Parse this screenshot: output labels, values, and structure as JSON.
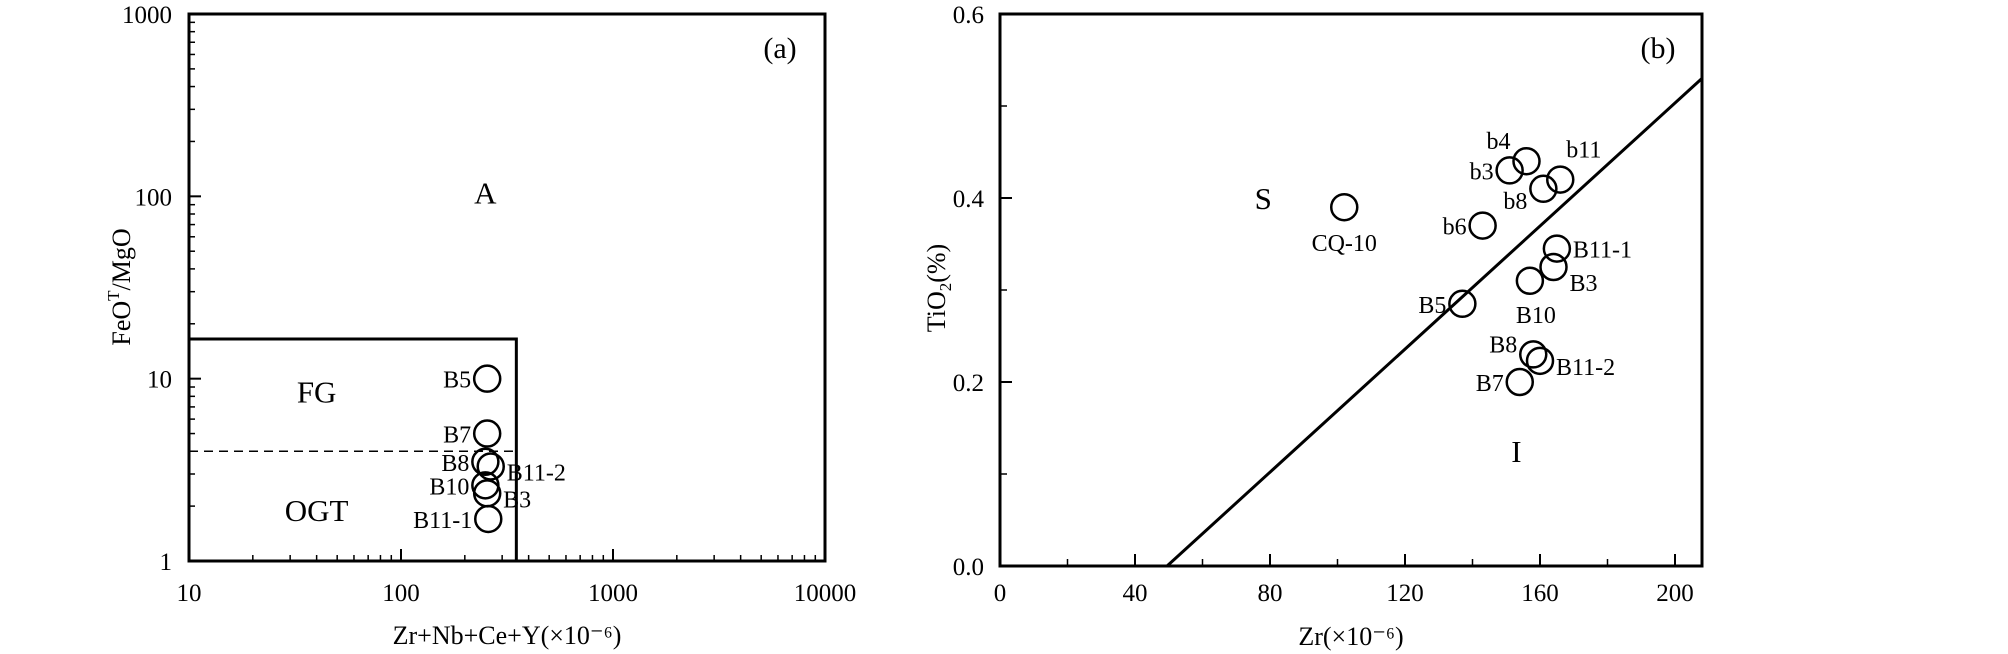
{
  "chart_data": [
    {
      "type": "scatter",
      "panel_label": "(a)",
      "xlabel": "Zr+Nb+Ce+Y(×10⁻⁶)",
      "ylabel_main": "FeO",
      "ylabel_sup": "T",
      "ylabel_rest": "/MgO",
      "x_scale": "log",
      "y_scale": "log",
      "xlim": [
        10,
        10000
      ],
      "ylim": [
        1,
        1000
      ],
      "x_ticks": [
        "10",
        "100",
        "1000",
        "10000"
      ],
      "y_ticks": [
        "1",
        "10",
        "100",
        "1000"
      ],
      "regions": [
        {
          "label": "A",
          "x": 250,
          "y": 105
        },
        {
          "label": "FG",
          "x": 40,
          "y": 8.5
        },
        {
          "label": "OGT",
          "x": 40,
          "y": 1.9
        }
      ],
      "boundaries": {
        "box": {
          "x": [
            10,
            350
          ],
          "y": [
            1,
            16.5
          ]
        },
        "dashed_y": 4
      },
      "points": [
        {
          "label": "B5",
          "x": 255,
          "y": 10.0
        },
        {
          "label": "B7",
          "x": 255,
          "y": 5.0
        },
        {
          "label": "B8",
          "x": 250,
          "y": 3.5
        },
        {
          "label": "B11-2",
          "x": 265,
          "y": 3.3
        },
        {
          "label": "B10",
          "x": 250,
          "y": 2.6
        },
        {
          "label": "B3",
          "x": 255,
          "y": 2.35
        },
        {
          "label": "B11-1",
          "x": 258,
          "y": 1.7
        }
      ]
    },
    {
      "type": "scatter",
      "panel_label": "(b)",
      "xlabel": "Zr(×10⁻⁶)",
      "ylabel_main": "TiO",
      "ylabel_sub": "2",
      "ylabel_rest": "(%)",
      "xlim": [
        0,
        208
      ],
      "ylim": [
        0,
        0.6
      ],
      "x_ticks": [
        "0",
        "40",
        "80",
        "120",
        "160",
        "200"
      ],
      "y_ticks": [
        "0.0",
        "0.2",
        "0.4",
        "0.6"
      ],
      "regions": [
        {
          "label": "S",
          "x": 78,
          "y": 0.4
        },
        {
          "label": "I",
          "x": 153,
          "y": 0.125
        }
      ],
      "boundary_line": {
        "x": [
          49.5,
          208
        ],
        "y": [
          0,
          0.53
        ]
      },
      "points": [
        {
          "label": "CQ-10",
          "x": 102,
          "y": 0.39
        },
        {
          "label": "b4",
          "x": 156,
          "y": 0.44
        },
        {
          "label": "b3",
          "x": 151,
          "y": 0.43
        },
        {
          "label": "b11",
          "x": 166,
          "y": 0.42
        },
        {
          "label": "b8",
          "x": 161,
          "y": 0.41
        },
        {
          "label": "b6",
          "x": 143,
          "y": 0.37
        },
        {
          "label": "B11-1",
          "x": 165,
          "y": 0.345
        },
        {
          "label": "B3",
          "x": 164,
          "y": 0.325
        },
        {
          "label": "B10",
          "x": 157,
          "y": 0.31
        },
        {
          "label": "B5",
          "x": 137,
          "y": 0.285
        },
        {
          "label": "B8",
          "x": 158,
          "y": 0.23
        },
        {
          "label": "B11-2",
          "x": 160,
          "y": 0.223
        },
        {
          "label": "B7",
          "x": 154,
          "y": 0.2
        }
      ]
    }
  ]
}
